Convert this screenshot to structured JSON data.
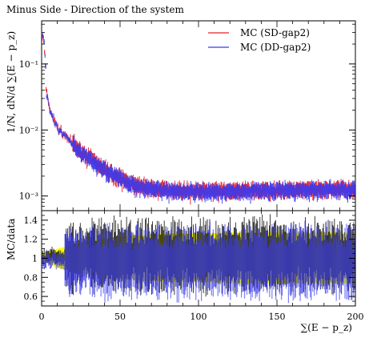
{
  "chart_data": [
    {
      "type": "line",
      "title": "Minus Side - Direction of the system",
      "ylabel": "1/N, dN/d ∑(E − p_z)",
      "yscale": "log",
      "ylim": [
        0.0006,
        0.45
      ],
      "xlim": [
        0,
        200
      ],
      "y_ticks": [
        "10⁻³",
        "10⁻²",
        "10⁻¹"
      ],
      "y_tick_values": [
        0.001,
        0.01,
        0.1
      ],
      "legend_position": "top-right",
      "series": [
        {
          "name": "MC (SD-gap2)",
          "color": "#e8202a",
          "x": [
            1,
            3,
            5,
            7,
            9,
            11,
            13,
            15,
            17,
            19,
            21,
            23,
            25,
            27,
            29,
            32,
            35,
            38,
            41,
            45,
            50,
            55,
            60,
            65,
            70,
            75,
            80,
            85,
            90,
            95,
            100,
            110,
            120,
            130,
            140,
            150,
            160,
            170,
            180,
            190,
            200
          ],
          "values": [
            0.26,
            0.04,
            0.022,
            0.016,
            0.0125,
            0.0105,
            0.0092,
            0.0082,
            0.0074,
            0.0066,
            0.006,
            0.0054,
            0.0049,
            0.0045,
            0.0041,
            0.0036,
            0.0032,
            0.0028,
            0.0025,
            0.0022,
            0.0019,
            0.0017,
            0.0015,
            0.00142,
            0.00135,
            0.0013,
            0.00127,
            0.00125,
            0.00123,
            0.00122,
            0.00122,
            0.00121,
            0.00122,
            0.00123,
            0.00124,
            0.00125,
            0.00126,
            0.00127,
            0.00128,
            0.00129,
            0.0013
          ]
        },
        {
          "name": "MC (DD-gap2)",
          "color": "#3b3bf0",
          "x": [
            1,
            3,
            5,
            7,
            9,
            11,
            13,
            15,
            17,
            19,
            21,
            23,
            25,
            27,
            29,
            32,
            35,
            38,
            41,
            45,
            50,
            55,
            60,
            65,
            70,
            75,
            80,
            85,
            90,
            95,
            100,
            110,
            120,
            130,
            140,
            150,
            160,
            170,
            180,
            190,
            200
          ],
          "values": [
            0.25,
            0.038,
            0.021,
            0.0155,
            0.0122,
            0.0102,
            0.009,
            0.008,
            0.0072,
            0.0064,
            0.0058,
            0.0052,
            0.0047,
            0.0043,
            0.004,
            0.0035,
            0.0031,
            0.0027,
            0.0024,
            0.0021,
            0.00185,
            0.00165,
            0.00148,
            0.00138,
            0.0013,
            0.00126,
            0.00123,
            0.00121,
            0.0012,
            0.00119,
            0.00119,
            0.00119,
            0.0012,
            0.00121,
            0.00122,
            0.00123,
            0.00124,
            0.00125,
            0.00126,
            0.00127,
            0.00128
          ]
        }
      ]
    },
    {
      "type": "line",
      "ylabel": "MC/data",
      "xlabel": "∑(E − p_z)",
      "xlim": [
        0,
        200
      ],
      "ylim": [
        0.5,
        1.5
      ],
      "x_ticks": [
        "0",
        "50",
        "100",
        "150",
        "200"
      ],
      "x_tick_values": [
        0,
        50,
        100,
        150,
        200
      ],
      "y_ticks": [
        "0.6",
        "0.8",
        "1",
        "1.2",
        "1.4"
      ],
      "y_tick_values": [
        0.6,
        0.8,
        1,
        1.2,
        1.4
      ],
      "band_color": "#ffff00",
      "band": {
        "x": [
          0,
          5,
          10,
          20,
          30,
          40,
          50,
          60,
          70,
          80,
          90,
          100,
          120,
          140,
          160,
          180,
          200
        ],
        "lower": [
          0.97,
          0.94,
          0.9,
          0.86,
          0.83,
          0.8,
          0.78,
          0.77,
          0.76,
          0.76,
          0.75,
          0.75,
          0.74,
          0.74,
          0.74,
          0.74,
          0.74
        ],
        "upper": [
          1.04,
          1.07,
          1.1,
          1.14,
          1.18,
          1.21,
          1.23,
          1.24,
          1.25,
          1.26,
          1.26,
          1.26,
          1.27,
          1.27,
          1.27,
          1.27,
          1.27
        ]
      },
      "series": [
        {
          "name": "MC (SD-gap2)",
          "color": "#101010",
          "x": [
            0,
            20,
            40,
            60,
            80,
            100,
            120,
            140,
            160,
            180,
            200
          ],
          "values": [
            1.0,
            1.02,
            1.03,
            1.02,
            1.03,
            1.02,
            1.02,
            1.03,
            1.02,
            1.03,
            1.02
          ]
        },
        {
          "name": "MC (DD-gap2)",
          "color": "#3b3bf0",
          "x": [
            0,
            20,
            40,
            60,
            80,
            100,
            120,
            140,
            160,
            180,
            200
          ],
          "values": [
            0.98,
            0.97,
            0.96,
            0.96,
            0.96,
            0.97,
            0.96,
            0.96,
            0.97,
            0.96,
            0.96
          ]
        }
      ]
    }
  ]
}
